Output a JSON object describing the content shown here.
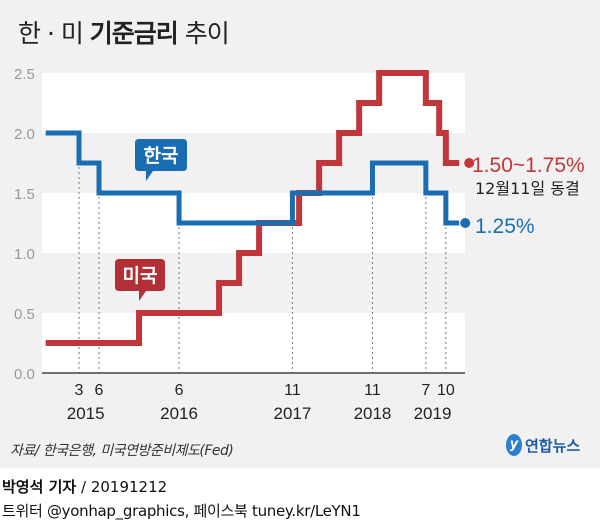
{
  "title": {
    "pre": "한 · 미 ",
    "bold": "기준금리",
    "post": " 추이"
  },
  "chart_data": {
    "type": "line",
    "step": true,
    "ylim": [
      0,
      2.5
    ],
    "yticks": [
      "0.0",
      "0.5",
      "1.0",
      "1.5",
      "2.0",
      "2.5"
    ],
    "grid": "alternating bands",
    "xrange": [
      "2014-10",
      "2019-12"
    ],
    "series": [
      {
        "name": "한국",
        "color": "#1a6db3",
        "end_label": "1.25%",
        "points": [
          [
            "2014-10",
            2.0
          ],
          [
            "2015-03",
            1.75
          ],
          [
            "2015-06",
            1.5
          ],
          [
            "2016-06",
            1.25
          ],
          [
            "2017-11",
            1.5
          ],
          [
            "2018-11",
            1.75
          ],
          [
            "2019-07",
            1.5
          ],
          [
            "2019-10",
            1.25
          ],
          [
            "2019-12",
            1.25
          ]
        ]
      },
      {
        "name": "미국",
        "color": "#c1363b",
        "end_label": "1.50~1.7",
        "end_note": "12월11일 동결",
        "points": [
          [
            "2014-10",
            0.25
          ],
          [
            "2015-12",
            0.5
          ],
          [
            "2016-12",
            0.75
          ],
          [
            "2017-03",
            1.0
          ],
          [
            "2017-06",
            1.25
          ],
          [
            "2017-12",
            1.5
          ],
          [
            "2018-03",
            1.75
          ],
          [
            "2018-06",
            2.0
          ],
          [
            "2018-09",
            2.25
          ],
          [
            "2018-12",
            2.5
          ],
          [
            "2019-07",
            2.25
          ],
          [
            "2019-09",
            2.0
          ],
          [
            "2019-10",
            1.75
          ],
          [
            "2019-12",
            1.75
          ]
        ]
      }
    ],
    "xticks": [
      {
        "date": "2015-03",
        "label": "3"
      },
      {
        "date": "2015-06",
        "label": "6"
      },
      {
        "date": "2016-06",
        "label": "6"
      },
      {
        "date": "2017-11",
        "label": "11"
      },
      {
        "date": "2018-11",
        "label": "11"
      },
      {
        "date": "2019-07",
        "label": "7"
      },
      {
        "date": "2019-10",
        "label": "10"
      }
    ],
    "years": [
      {
        "label": "2015",
        "center": "2015-04"
      },
      {
        "label": "2016",
        "center": "2016-06"
      },
      {
        "label": "2017",
        "center": "2017-11"
      },
      {
        "label": "2018",
        "center": "2018-11"
      },
      {
        "label": "2019",
        "center": "2019-08"
      }
    ]
  },
  "footer": {
    "source": "자료/ 한국은행, 미국연방준비제도(Fed)",
    "logo": "연합뉴스",
    "reporter": "박영석 기자",
    "date": " / 20191212",
    "sns": "트위터 @yonhap_graphics, 페이스북 tuney.kr/LeYN1"
  }
}
